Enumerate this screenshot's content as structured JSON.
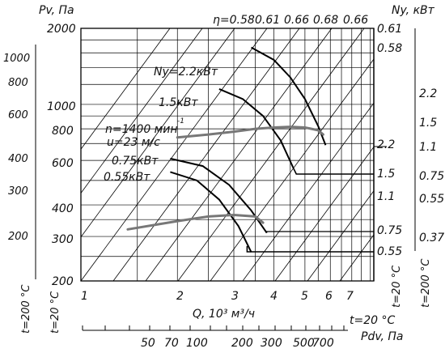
{
  "chart_data": {
    "type": "line",
    "title": "",
    "left_axis_1": {
      "label": "Pv, Па",
      "ticks": [
        "1000",
        "800",
        "600",
        "400",
        "300",
        "200"
      ],
      "temperature": "t=200 °C"
    },
    "left_axis_2": {
      "ticks": [
        "2000",
        "1000",
        "800",
        "600",
        "400",
        "300",
        "200"
      ],
      "temperature": "t=20 °C"
    },
    "right_axis_1": {
      "label": "Ny, кВт",
      "ticks": [
        "0.61",
        "0.58",
        "2.2",
        "1.5",
        "1.1",
        "0.75",
        "0.55"
      ],
      "temperature": "t=20 °C"
    },
    "right_axis_2": {
      "ticks": [
        "2.2",
        "1.5",
        "1.1",
        "0.75",
        "0.55",
        "0.37"
      ],
      "temperature": "t=200 °C"
    },
    "x_axis": {
      "label": "Q, 10³ м³/ч",
      "ticks": [
        1,
        2,
        3,
        4,
        5,
        6,
        7
      ]
    },
    "pdv_axis": {
      "label": "Pdv, Па",
      "temperature": "t=20 °C",
      "ticks": [
        "50",
        "70",
        "100",
        "200",
        "300",
        "500",
        "700"
      ]
    },
    "efficiency_labels": [
      "η=0.58",
      "0.61",
      "0.66",
      "0.68",
      "0.66"
    ],
    "power_labels": [
      "Ny=2.2кВт",
      "1.5кВт",
      "0.75кВт",
      "0.55кВт"
    ],
    "speed_label": {
      "line1": "n=1400 мин",
      "exp": "-1",
      "line2": "u=23 м/с"
    },
    "series": [
      {
        "name": "n=1400 мин-1 (Pv)",
        "x": [
          2.0,
          2.5,
          3.0,
          3.5,
          4.0,
          4.5,
          5.0,
          5.5,
          5.7
        ],
        "y": [
          740,
          760,
          780,
          800,
          810,
          815,
          810,
          790,
          760
        ]
      },
      {
        "name": "n=1400 мин-1 (lower)",
        "x": [
          1.4,
          2.0,
          2.5,
          3.0,
          3.5,
          3.7
        ],
        "y": [
          320,
          345,
          360,
          365,
          360,
          340
        ]
      }
    ],
    "power_curves": [
      {
        "label": "2.2кВт",
        "x": [
          3.4,
          4.0,
          4.5,
          5.0,
          5.5,
          5.8
        ],
        "y": [
          1680,
          1500,
          1280,
          1050,
          820,
          690
        ],
        "to": "1.5"
      },
      {
        "label": "1.5кВт",
        "x": [
          2.7,
          3.2,
          3.7,
          4.2,
          4.6
        ],
        "y": [
          1150,
          1050,
          900,
          720,
          560
        ],
        "to": "1.5"
      },
      {
        "label": "0.75кВт",
        "x": [
          1.9,
          2.4,
          2.9,
          3.4,
          3.8
        ],
        "y": [
          610,
          570,
          480,
          380,
          310
        ],
        "to": "0.75"
      },
      {
        "label": "0.55кВт",
        "x": [
          1.9,
          2.3,
          2.7,
          3.1,
          3.4
        ],
        "y": [
          540,
          500,
          420,
          330,
          260
        ],
        "to": "0.55"
      }
    ],
    "grid": true
  }
}
